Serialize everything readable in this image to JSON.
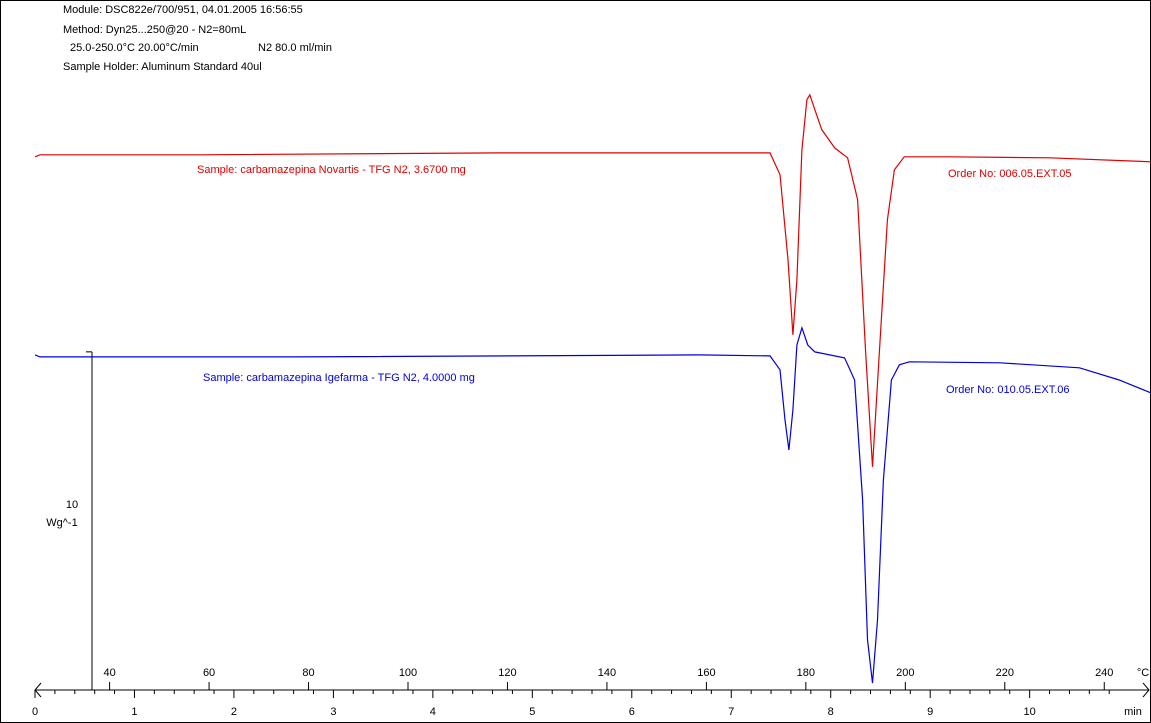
{
  "chart_data": {
    "type": "line",
    "header": [
      "Module: DSC822e/700/951, 04.01.2005 16:56:55",
      "Method: Dyn25...250@20 - N2=80mL",
      "25.0-250.0°C 20.00°C/min",
      "N2 80.0 ml/min",
      "Sample Holder: Aluminum Standard 40ul"
    ],
    "series": [
      {
        "name": "Sample: carbamazepina Novartis - TFG N2, 3.6700 mg",
        "order": "Order No: 006.05.EXT.05",
        "color": "#e00000",
        "x": [
          0,
          0.05,
          1.66,
          4.67,
          7.39,
          7.49,
          7.57,
          7.62,
          7.66,
          7.71,
          7.76,
          7.79,
          7.84,
          7.91,
          8.04,
          8.17,
          8.27,
          8.35,
          8.42,
          8.49,
          8.57,
          8.64,
          8.74,
          9.2,
          10.2,
          11.22
        ],
        "values": [
          16.15,
          16.21,
          16.21,
          16.27,
          16.27,
          15.61,
          13.03,
          10.76,
          12.42,
          16.36,
          17.88,
          18.03,
          17.58,
          16.97,
          16.42,
          16.12,
          14.85,
          10.3,
          6.76,
          10.3,
          14.24,
          15.76,
          16.15,
          16.15,
          16.12,
          16.0
        ]
      },
      {
        "name": "Sample: carbamazepina Igefarma - TFG N2, 4.0000 mg",
        "order": "Order No: 010.05.EXT.06",
        "color": "#0000e0",
        "x": [
          0,
          0.05,
          2.66,
          6.68,
          7.39,
          7.49,
          7.54,
          7.58,
          7.62,
          7.66,
          7.71,
          7.77,
          7.84,
          8.14,
          8.24,
          8.32,
          8.37,
          8.42,
          8.47,
          8.53,
          8.61,
          8.69,
          8.79,
          9.7,
          10.5,
          10.9,
          11.22
        ],
        "values": [
          10.15,
          10.09,
          10.09,
          10.15,
          10.12,
          9.7,
          8.18,
          7.27,
          8.48,
          10.45,
          10.97,
          10.45,
          10.24,
          10.06,
          9.39,
          5.76,
          1.52,
          0.21,
          2.12,
          6.36,
          9.39,
          9.85,
          9.94,
          9.91,
          9.76,
          9.39,
          9.0
        ]
      }
    ],
    "xlim": [
      0,
      11.22
    ],
    "xticks": [
      0,
      1,
      2,
      3,
      4,
      5,
      6,
      7,
      8,
      9,
      10
    ],
    "xunit": "min",
    "x2lim": [
      25,
      249.4
    ],
    "x2ticks": [
      40,
      60,
      80,
      100,
      120,
      140,
      160,
      180,
      200,
      220,
      240
    ],
    "x2unit": "°C",
    "ylim": [
      0,
      20.9
    ],
    "scale_bar": {
      "value": 10,
      "unit": "Wg^-1"
    }
  }
}
